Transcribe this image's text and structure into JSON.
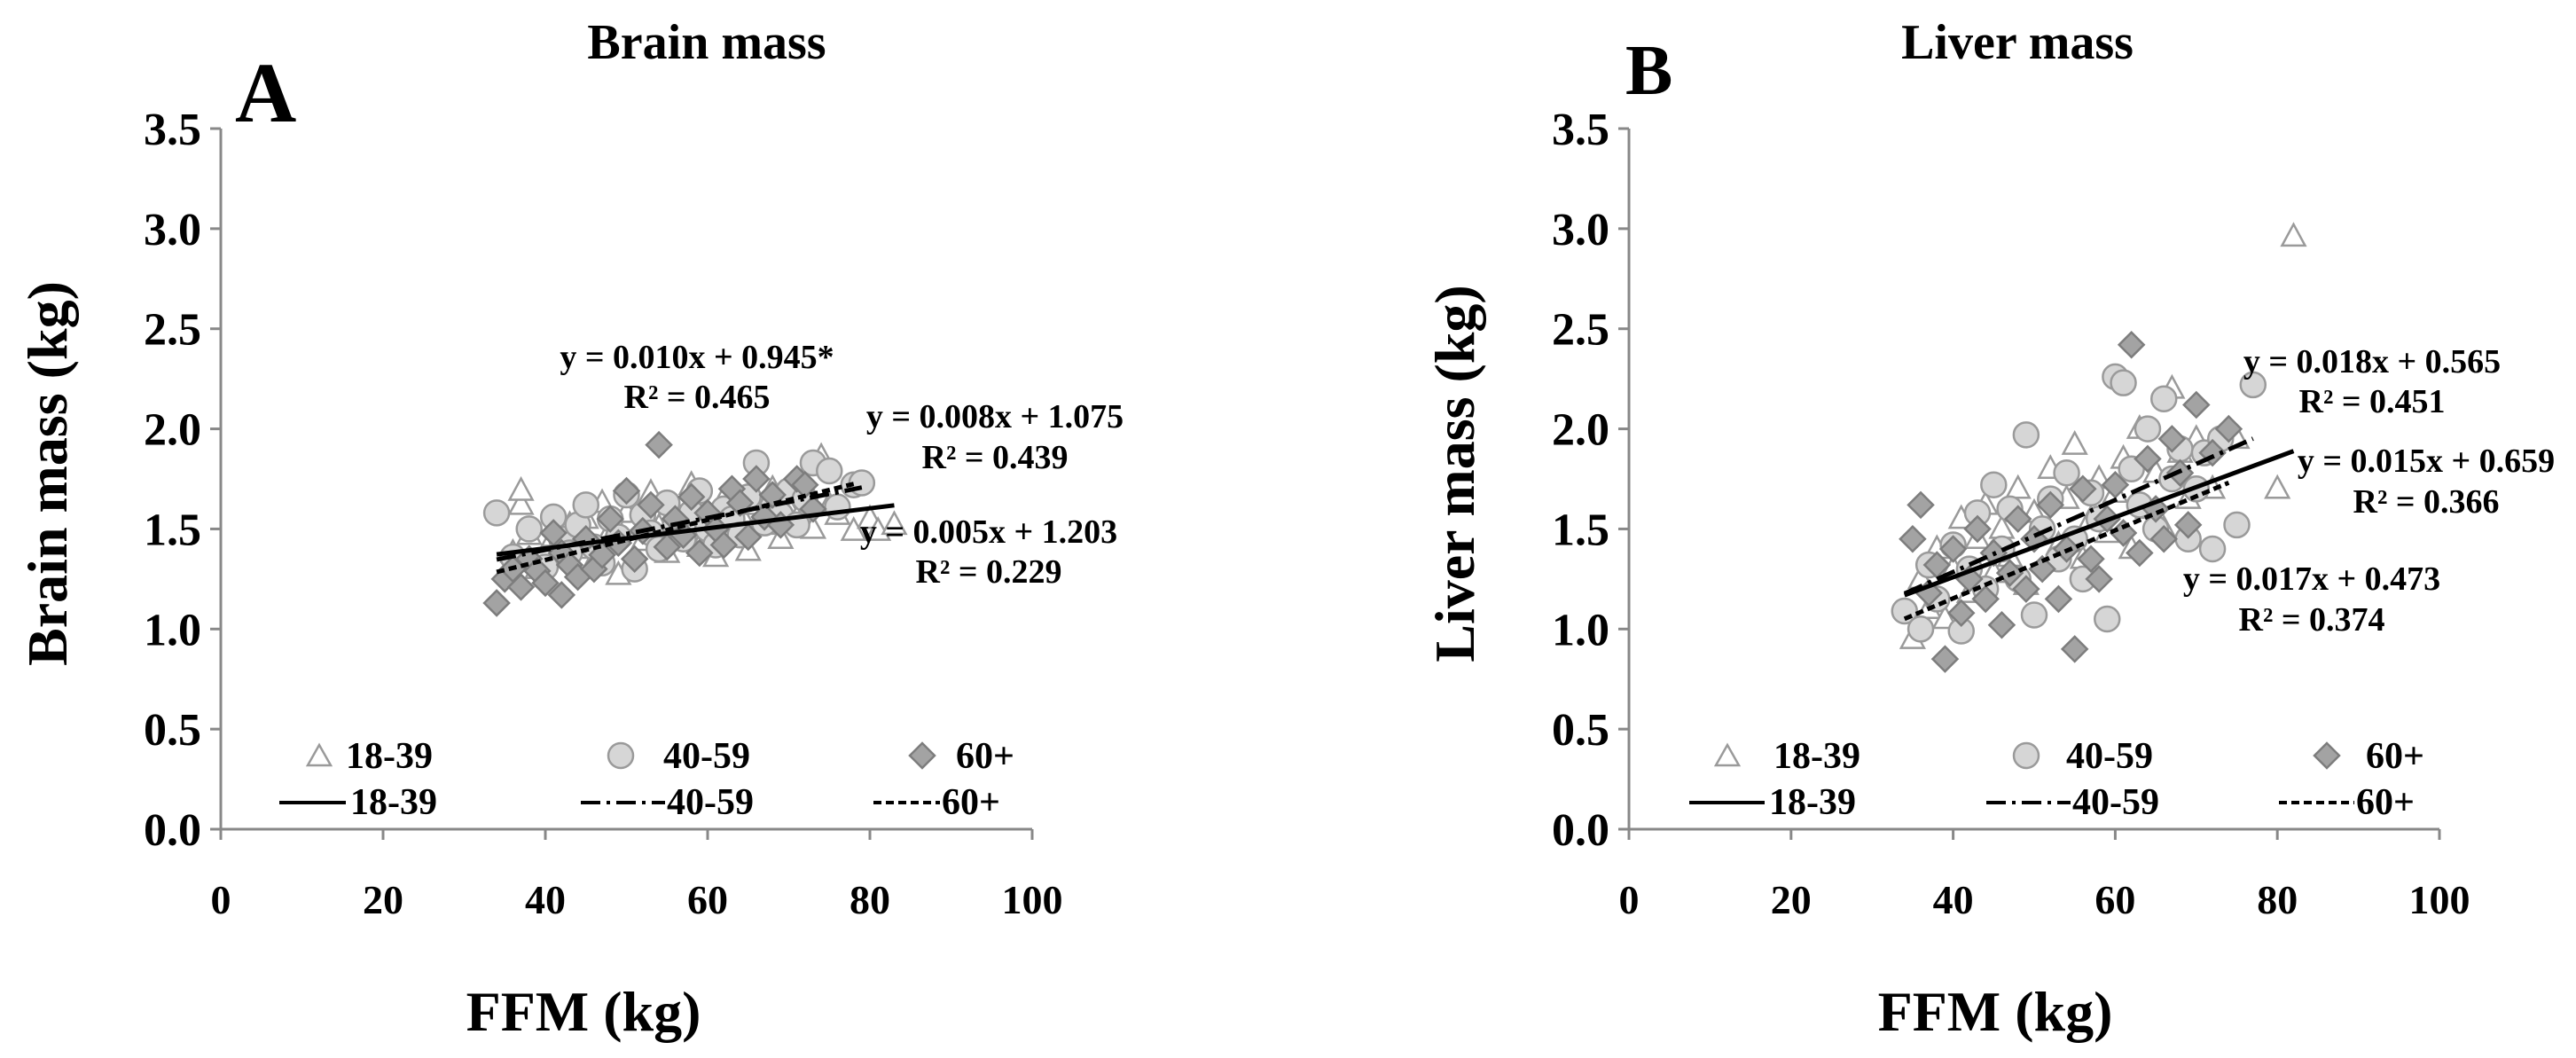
{
  "chart_data": [
    {
      "type": "scatter",
      "panel_letter": "A",
      "title": "Brain mass",
      "xlabel": "FFM (kg)",
      "ylabel": "Brain mass (kg)",
      "xlim": [
        0,
        100
      ],
      "ylim": [
        0,
        3.5
      ],
      "xticks": [
        "0",
        "20",
        "40",
        "60",
        "80",
        "100"
      ],
      "yticks": [
        "0.0",
        "0.5",
        "1.0",
        "1.5",
        "2.0",
        "2.5",
        "3.0",
        "3.5"
      ],
      "legend": {
        "markers": [
          "18-39",
          "40-59",
          "60+"
        ],
        "lines": [
          "18-39",
          "40-59",
          "60+"
        ]
      },
      "series": [
        {
          "name": "18-39",
          "marker": "triangle",
          "points": [
            [
              36,
              1.38
            ],
            [
              37,
              1.62
            ],
            [
              37,
              1.69
            ],
            [
              38,
              1.47
            ],
            [
              39,
              1.3
            ],
            [
              41,
              1.46
            ],
            [
              43,
              1.52
            ],
            [
              44,
              1.4
            ],
            [
              45,
              1.55
            ],
            [
              46,
              1.34
            ],
            [
              47,
              1.63
            ],
            [
              48,
              1.49
            ],
            [
              49,
              1.27
            ],
            [
              50,
              1.58
            ],
            [
              52,
              1.44
            ],
            [
              53,
              1.68
            ],
            [
              54,
              1.51
            ],
            [
              55,
              1.38
            ],
            [
              56,
              1.6
            ],
            [
              57,
              1.47
            ],
            [
              58,
              1.72
            ],
            [
              59,
              1.41
            ],
            [
              60,
              1.55
            ],
            [
              61,
              1.36
            ],
            [
              62,
              1.65
            ],
            [
              63,
              1.48
            ],
            [
              64,
              1.58
            ],
            [
              65,
              1.39
            ],
            [
              66,
              1.62
            ],
            [
              67,
              1.52
            ],
            [
              68,
              1.7
            ],
            [
              69,
              1.45
            ],
            [
              70,
              1.6
            ],
            [
              71,
              1.55
            ],
            [
              72,
              1.67
            ],
            [
              73,
              1.5
            ],
            [
              74,
              1.86
            ],
            [
              75,
              1.62
            ],
            [
              76,
              1.57
            ],
            [
              78,
              1.49
            ],
            [
              80,
              1.55
            ],
            [
              81,
              1.49
            ],
            [
              83,
              1.52
            ]
          ]
        },
        {
          "name": "40-59",
          "marker": "circle",
          "points": [
            [
              34,
              1.58
            ],
            [
              36,
              1.36
            ],
            [
              38,
              1.5
            ],
            [
              40,
              1.31
            ],
            [
              41,
              1.56
            ],
            [
              42,
              1.45
            ],
            [
              43,
              1.38
            ],
            [
              44,
              1.52
            ],
            [
              45,
              1.62
            ],
            [
              46,
              1.41
            ],
            [
              47,
              1.33
            ],
            [
              48,
              1.55
            ],
            [
              49,
              1.46
            ],
            [
              50,
              1.67
            ],
            [
              51,
              1.3
            ],
            [
              52,
              1.57
            ],
            [
              53,
              1.48
            ],
            [
              54,
              1.4
            ],
            [
              55,
              1.63
            ],
            [
              56,
              1.52
            ],
            [
              57,
              1.45
            ],
            [
              58,
              1.58
            ],
            [
              59,
              1.69
            ],
            [
              60,
              1.5
            ],
            [
              61,
              1.42
            ],
            [
              62,
              1.6
            ],
            [
              63,
              1.55
            ],
            [
              64,
              1.47
            ],
            [
              65,
              1.66
            ],
            [
              66,
              1.83
            ],
            [
              67,
              1.53
            ],
            [
              68,
              1.61
            ],
            [
              69,
              1.57
            ],
            [
              70,
              1.69
            ],
            [
              71,
              1.52
            ],
            [
              72,
              1.65
            ],
            [
              73,
              1.83
            ],
            [
              75,
              1.79
            ],
            [
              76,
              1.61
            ],
            [
              78,
              1.72
            ],
            [
              79,
              1.73
            ]
          ]
        },
        {
          "name": "60+",
          "marker": "diamond",
          "points": [
            [
              34,
              1.13
            ],
            [
              35,
              1.25
            ],
            [
              36,
              1.3
            ],
            [
              37,
              1.21
            ],
            [
              38,
              1.35
            ],
            [
              39,
              1.29
            ],
            [
              40,
              1.23
            ],
            [
              41,
              1.48
            ],
            [
              42,
              1.17
            ],
            [
              42,
              1.38
            ],
            [
              43,
              1.32
            ],
            [
              44,
              1.26
            ],
            [
              45,
              1.45
            ],
            [
              46,
              1.3
            ],
            [
              47,
              1.37
            ],
            [
              48,
              1.55
            ],
            [
              49,
              1.43
            ],
            [
              50,
              1.69
            ],
            [
              51,
              1.35
            ],
            [
              52,
              1.49
            ],
            [
              53,
              1.62
            ],
            [
              54,
              1.92
            ],
            [
              55,
              1.41
            ],
            [
              56,
              1.55
            ],
            [
              57,
              1.47
            ],
            [
              58,
              1.66
            ],
            [
              59,
              1.38
            ],
            [
              60,
              1.58
            ],
            [
              61,
              1.5
            ],
            [
              62,
              1.42
            ],
            [
              63,
              1.7
            ],
            [
              64,
              1.63
            ],
            [
              65,
              1.46
            ],
            [
              66,
              1.75
            ],
            [
              67,
              1.56
            ],
            [
              68,
              1.67
            ],
            [
              69,
              1.52
            ],
            [
              71,
              1.75
            ],
            [
              72,
              1.72
            ],
            [
              73,
              1.6
            ]
          ]
        }
      ],
      "regressions": [
        {
          "group": "18-39",
          "style": "solid",
          "slope": 0.005,
          "intercept": 1.203,
          "x_range": [
            34,
            83
          ],
          "equation": "y = 0.005x + 1.203",
          "r2": "R² = 0.229"
        },
        {
          "group": "40-59",
          "style": "dashdot",
          "slope": 0.008,
          "intercept": 1.075,
          "x_range": [
            34,
            79
          ],
          "equation": "y = 0.008x + 1.075",
          "r2": "R² = 0.439"
        },
        {
          "group": "60+",
          "style": "dashed",
          "slope": 0.01,
          "intercept": 0.945,
          "x_range": [
            34,
            78
          ],
          "equation": "y = 0.010x + 0.945*",
          "r2": "R² = 0.465"
        }
      ]
    },
    {
      "type": "scatter",
      "panel_letter": "B",
      "title": "Liver mass",
      "xlabel": "FFM (kg)",
      "ylabel": "Liver mass (kg)",
      "xlim": [
        0,
        100
      ],
      "ylim": [
        0,
        3.5
      ],
      "xticks": [
        "0",
        "20",
        "40",
        "60",
        "80",
        "100"
      ],
      "yticks": [
        "0.0",
        "0.5",
        "1.0",
        "1.5",
        "2.0",
        "2.5",
        "3.0",
        "3.5"
      ],
      "legend": {
        "markers": [
          "18-39",
          "40-59",
          "60+"
        ],
        "lines": [
          "18-39",
          "40-59",
          "60+"
        ]
      },
      "series": [
        {
          "name": "18-39",
          "marker": "triangle",
          "points": [
            [
              35,
              0.95
            ],
            [
              36,
              1.25
            ],
            [
              37,
              1.1
            ],
            [
              38,
              1.4
            ],
            [
              39,
              1.05
            ],
            [
              40,
              1.3
            ],
            [
              41,
              1.55
            ],
            [
              42,
              1.18
            ],
            [
              43,
              1.45
            ],
            [
              44,
              1.62
            ],
            [
              45,
              1.28
            ],
            [
              46,
              1.5
            ],
            [
              47,
              1.36
            ],
            [
              48,
              1.7
            ],
            [
              49,
              1.22
            ],
            [
              50,
              1.58
            ],
            [
              52,
              1.8
            ],
            [
              53,
              1.42
            ],
            [
              54,
              1.65
            ],
            [
              55,
              1.92
            ],
            [
              56,
              1.35
            ],
            [
              57,
              1.55
            ],
            [
              58,
              1.75
            ],
            [
              59,
              1.48
            ],
            [
              60,
              1.68
            ],
            [
              61,
              1.85
            ],
            [
              62,
              1.4
            ],
            [
              63,
              2.0
            ],
            [
              64,
              1.6
            ],
            [
              65,
              1.78
            ],
            [
              66,
              1.5
            ],
            [
              67,
              2.2
            ],
            [
              68,
              1.88
            ],
            [
              69,
              1.65
            ],
            [
              70,
              1.95
            ],
            [
              72,
              1.7
            ],
            [
              75,
              1.95
            ],
            [
              80,
              1.7
            ],
            [
              82,
              2.96
            ]
          ]
        },
        {
          "name": "40-59",
          "marker": "circle",
          "points": [
            [
              34,
              1.09
            ],
            [
              36,
              1.0
            ],
            [
              37,
              1.32
            ],
            [
              38,
              1.15
            ],
            [
              40,
              1.42
            ],
            [
              41,
              0.99
            ],
            [
              42,
              1.3
            ],
            [
              43,
              1.58
            ],
            [
              44,
              1.2
            ],
            [
              45,
              1.72
            ],
            [
              46,
              1.4
            ],
            [
              47,
              1.6
            ],
            [
              48,
              1.25
            ],
            [
              49,
              1.97
            ],
            [
              50,
              1.07
            ],
            [
              51,
              1.5
            ],
            [
              52,
              1.65
            ],
            [
              53,
              1.35
            ],
            [
              54,
              1.78
            ],
            [
              55,
              1.45
            ],
            [
              56,
              1.25
            ],
            [
              57,
              1.68
            ],
            [
              58,
              1.55
            ],
            [
              59,
              1.05
            ],
            [
              60,
              2.26
            ],
            [
              61,
              2.23
            ],
            [
              62,
              1.8
            ],
            [
              63,
              1.62
            ],
            [
              64,
              2.0
            ],
            [
              65,
              1.5
            ],
            [
              66,
              2.15
            ],
            [
              67,
              1.75
            ],
            [
              68,
              1.9
            ],
            [
              69,
              1.45
            ],
            [
              70,
              1.7
            ],
            [
              71,
              1.88
            ],
            [
              72,
              1.4
            ],
            [
              73,
              1.95
            ],
            [
              75,
              1.52
            ],
            [
              77,
              2.22
            ]
          ]
        },
        {
          "name": "60+",
          "marker": "diamond",
          "points": [
            [
              35,
              1.45
            ],
            [
              36,
              1.62
            ],
            [
              37,
              1.18
            ],
            [
              38,
              1.32
            ],
            [
              39,
              0.85
            ],
            [
              40,
              1.4
            ],
            [
              41,
              1.08
            ],
            [
              42,
              1.25
            ],
            [
              43,
              1.5
            ],
            [
              44,
              1.15
            ],
            [
              45,
              1.38
            ],
            [
              46,
              1.02
            ],
            [
              47,
              1.28
            ],
            [
              48,
              1.55
            ],
            [
              49,
              1.2
            ],
            [
              50,
              1.45
            ],
            [
              51,
              1.3
            ],
            [
              52,
              1.62
            ],
            [
              53,
              1.15
            ],
            [
              54,
              1.4
            ],
            [
              55,
              0.9
            ],
            [
              56,
              1.7
            ],
            [
              57,
              1.35
            ],
            [
              58,
              1.25
            ],
            [
              59,
              1.55
            ],
            [
              60,
              1.72
            ],
            [
              61,
              1.48
            ],
            [
              62,
              2.42
            ],
            [
              63,
              1.38
            ],
            [
              64,
              1.85
            ],
            [
              65,
              1.6
            ],
            [
              66,
              1.45
            ],
            [
              67,
              1.95
            ],
            [
              68,
              1.78
            ],
            [
              69,
              1.52
            ],
            [
              70,
              2.12
            ],
            [
              72,
              1.88
            ],
            [
              74,
              2.0
            ]
          ]
        }
      ],
      "regressions": [
        {
          "group": "18-39",
          "style": "solid",
          "slope": 0.015,
          "intercept": 0.659,
          "x_range": [
            34,
            82
          ],
          "equation": "y = 0.015x + 0.659",
          "r2": "R² = 0.366"
        },
        {
          "group": "40-59",
          "style": "dashdot",
          "slope": 0.018,
          "intercept": 0.565,
          "x_range": [
            34,
            77
          ],
          "equation": "y = 0.018x + 0.565",
          "r2": "R² = 0.451"
        },
        {
          "group": "60+",
          "style": "dashed",
          "slope": 0.017,
          "intercept": 0.473,
          "x_range": [
            34,
            74
          ],
          "equation": "y = 0.017x + 0.473",
          "r2": "R² = 0.374"
        }
      ]
    }
  ]
}
